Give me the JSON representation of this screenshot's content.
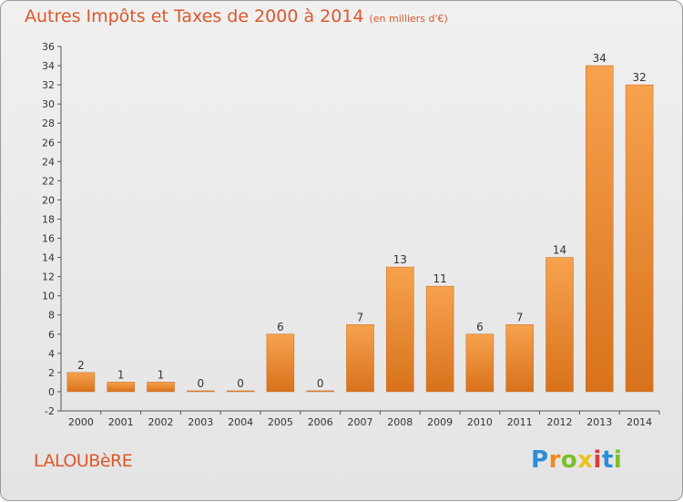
{
  "chart_data": {
    "type": "bar",
    "title": "Autres Impôts et Taxes de 2000 à 2014",
    "subtitle": "(en milliers d'€)",
    "categories": [
      "2000",
      "2001",
      "2002",
      "2003",
      "2004",
      "2005",
      "2006",
      "2007",
      "2008",
      "2009",
      "2010",
      "2011",
      "2012",
      "2013",
      "2014"
    ],
    "values": [
      2,
      1,
      1,
      0,
      0,
      6,
      0,
      7,
      13,
      11,
      6,
      7,
      14,
      34,
      32
    ],
    "ylim": [
      -2,
      36
    ],
    "yticks": [
      -2,
      0,
      2,
      4,
      6,
      8,
      10,
      12,
      14,
      16,
      18,
      20,
      22,
      24,
      26,
      28,
      30,
      32,
      34,
      36
    ],
    "grid": false,
    "bar_color": "#f0892e"
  },
  "place_name": "LALOUBèRE",
  "brand": {
    "letters": [
      "P",
      "r",
      "o",
      "x",
      "i",
      "t",
      "i"
    ],
    "colors": [
      "#2a8fd6",
      "#f08a1c",
      "#7bbf2a",
      "#f0c020",
      "#d83b3b",
      "#2a8fd6",
      "#7bbf2a"
    ]
  }
}
